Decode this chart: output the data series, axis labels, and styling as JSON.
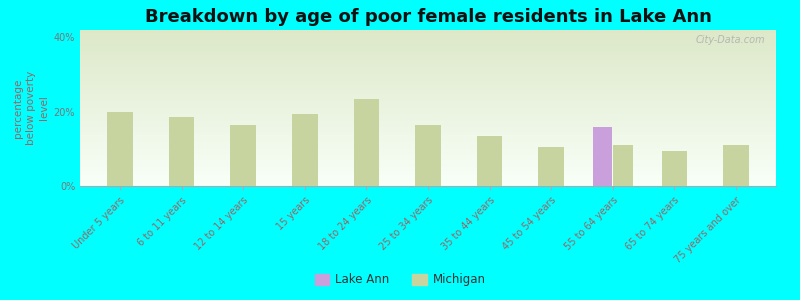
{
  "title": "Breakdown by age of poor female residents in Lake Ann",
  "ylabel": "percentage\nbelow poverty\nlevel",
  "categories": [
    "Under 5 years",
    "6 to 11 years",
    "12 to 14 years",
    "15 years",
    "18 to 24 years",
    "25 to 34 years",
    "35 to 44 years",
    "45 to 54 years",
    "55 to 64 years",
    "65 to 74 years",
    "75 years and over"
  ],
  "lake_ann_values": [
    null,
    null,
    null,
    null,
    null,
    null,
    null,
    null,
    16.0,
    null,
    null
  ],
  "michigan_values": [
    20.0,
    18.5,
    16.5,
    19.5,
    23.5,
    16.5,
    13.5,
    10.5,
    11.0,
    9.5,
    11.0
  ],
  "ylim": [
    0,
    42
  ],
  "ytick_labels": [
    "0%",
    "20%",
    "40%"
  ],
  "ytick_vals": [
    0,
    20,
    40
  ],
  "bar_width": 0.32,
  "lake_ann_color": "#c9a0dc",
  "michigan_color": "#c8d4a0",
  "background_color": "#00ffff",
  "plot_bg_top": "#dce8c8",
  "plot_bg_bottom": "#f8fff8",
  "title_fontsize": 13,
  "axis_label_fontsize": 7.5,
  "tick_fontsize": 7,
  "watermark": "City-Data.com",
  "legend_label_lake_ann": "Lake Ann",
  "legend_label_michigan": "Michigan"
}
